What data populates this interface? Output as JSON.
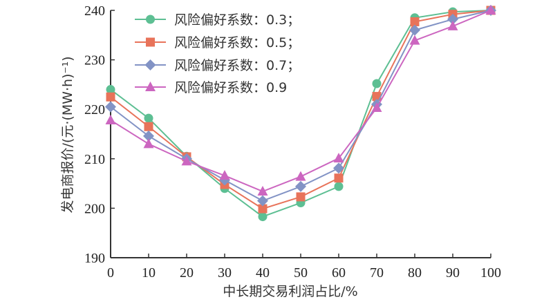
{
  "chart_data": {
    "type": "line",
    "title": "",
    "xlabel": "中长期交易利润占比/%",
    "ylabel": "发电商报价/(元·(MW·h)⁻¹)",
    "x": [
      0,
      10,
      20,
      30,
      40,
      50,
      60,
      70,
      80,
      90,
      100
    ],
    "x_tick_labels": [
      "0",
      "10",
      "20",
      "30",
      "40",
      "50",
      "60",
      "70",
      "80",
      "90",
      "100"
    ],
    "y_tick_labels": [
      "190",
      "200",
      "210",
      "220",
      "230",
      "240"
    ],
    "y_ticks": [
      190,
      200,
      210,
      220,
      230,
      240
    ],
    "xlim": [
      0,
      100
    ],
    "ylim": [
      190,
      240
    ],
    "grid": false,
    "legend_position": "top-left",
    "series": [
      {
        "name": "风险偏好系数：0.3；",
        "color": "#5dbf93",
        "marker": "circle",
        "values": [
          224.0,
          218.2,
          210.5,
          204.0,
          198.3,
          201.1,
          204.4,
          225.2,
          238.5,
          239.7,
          240.0
        ]
      },
      {
        "name": "风险偏好系数：0.5；",
        "color": "#e8735a",
        "marker": "square",
        "values": [
          222.5,
          216.5,
          210.4,
          204.8,
          199.9,
          202.3,
          206.1,
          222.6,
          237.7,
          239.2,
          240.0
        ]
      },
      {
        "name": "风险偏好系数：0.7；",
        "color": "#8293c5",
        "marker": "diamond",
        "values": [
          220.5,
          214.6,
          210.0,
          205.7,
          201.5,
          204.4,
          208.1,
          221.0,
          236.0,
          238.2,
          240.0
        ]
      },
      {
        "name": "风险偏好系数：0.9",
        "color": "#cc66c0",
        "marker": "triangle",
        "values": [
          217.8,
          213.0,
          209.5,
          206.6,
          203.4,
          206.4,
          210.1,
          220.3,
          233.9,
          236.8,
          240.0
        ]
      }
    ]
  }
}
